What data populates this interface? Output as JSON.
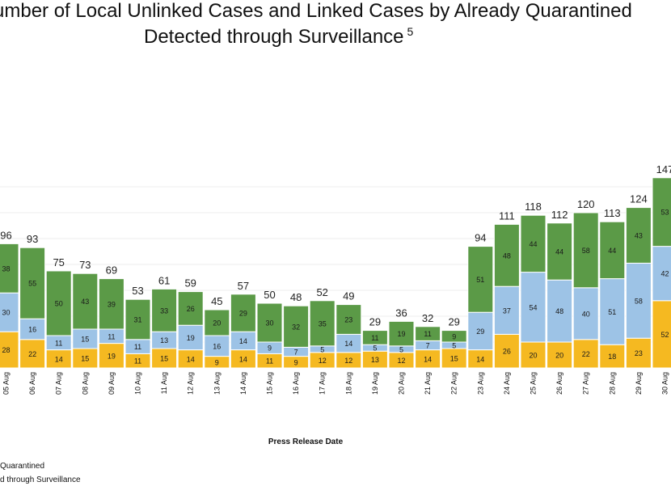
{
  "title_line1": "umber of Local Unlinked Cases and Linked Cases by Already Quarantined",
  "title_line2": "Detected through Surveillance",
  "title_superscript": "5",
  "chart_data": {
    "type": "bar",
    "stacked": true,
    "xlabel": "Press Release Date",
    "categories": [
      "05 Aug",
      "06 Aug",
      "07 Aug",
      "08 Aug",
      "09 Aug",
      "10 Aug",
      "11 Aug",
      "12 Aug",
      "13 Aug",
      "14 Aug",
      "15 Aug",
      "16 Aug",
      "17 Aug",
      "18 Aug",
      "19 Aug",
      "20 Aug",
      "21 Aug",
      "22 Aug",
      "23 Aug",
      "24 Aug",
      "25 Aug",
      "26 Aug",
      "27 Aug",
      "28 Aug",
      "29 Aug",
      "30 Aug"
    ],
    "series": [
      {
        "color": "#F5B921",
        "values": [
          28,
          22,
          14,
          15,
          19,
          11,
          15,
          14,
          9,
          14,
          11,
          9,
          12,
          12,
          13,
          12,
          14,
          15,
          14,
          26,
          20,
          20,
          22,
          18,
          23,
          52
        ]
      },
      {
        "color": "#9DC3E6",
        "values": [
          30,
          16,
          11,
          15,
          11,
          11,
          13,
          19,
          16,
          14,
          9,
          7,
          5,
          14,
          5,
          5,
          7,
          5,
          29,
          37,
          54,
          48,
          40,
          51,
          58,
          42
        ]
      },
      {
        "color": "#5B9A47",
        "values": [
          38,
          55,
          50,
          43,
          39,
          31,
          33,
          26,
          20,
          29,
          30,
          32,
          35,
          23,
          11,
          19,
          11,
          9,
          51,
          48,
          44,
          44,
          58,
          44,
          43,
          53
        ]
      }
    ],
    "totals": [
      96,
      93,
      75,
      73,
      69,
      53,
      61,
      59,
      45,
      57,
      50,
      48,
      52,
      49,
      29,
      36,
      32,
      29,
      94,
      111,
      118,
      112,
      120,
      113,
      124,
      147
    ],
    "ylim": [
      0,
      160
    ],
    "grid": true,
    "legend_labels": [
      "Quarantined",
      "d through Surveillance"
    ]
  }
}
